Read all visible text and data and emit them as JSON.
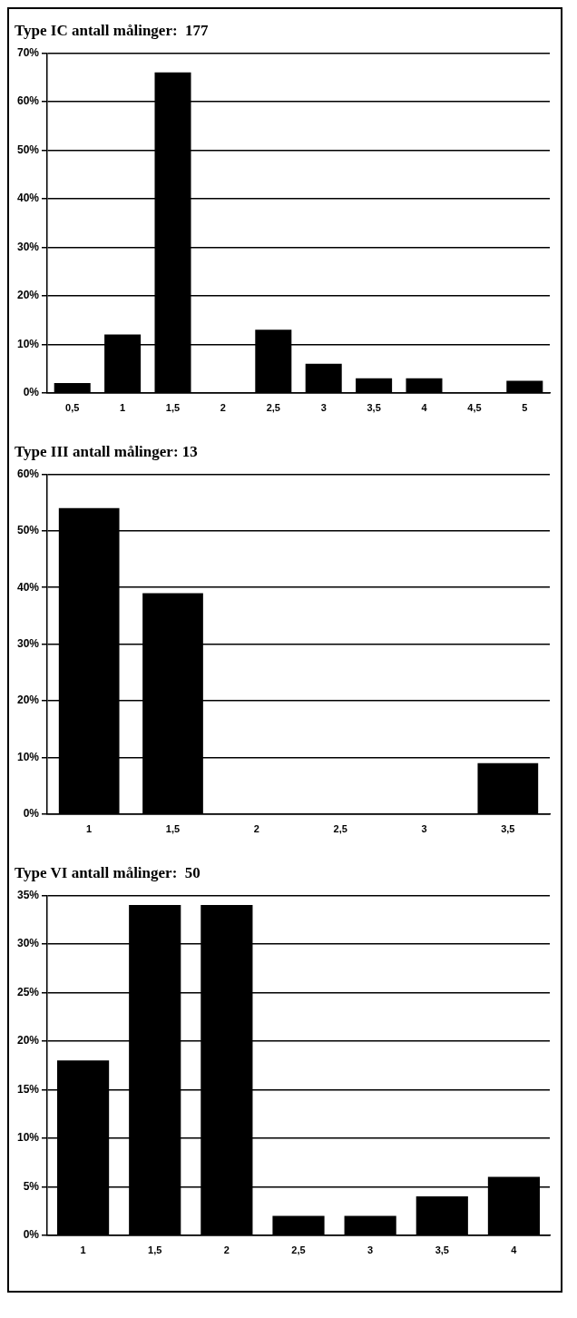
{
  "chart_data": [
    {
      "type": "bar",
      "title": "Type IC antall målinger:  177",
      "categories": [
        "0,5",
        "1",
        "1,5",
        "2",
        "2,5",
        "3",
        "3,5",
        "4",
        "4,5",
        "5"
      ],
      "values": [
        2,
        12,
        66,
        0,
        13,
        6,
        3,
        3,
        0,
        2.5
      ],
      "color": "#000000",
      "ylim": [
        0,
        70
      ],
      "yticks": [
        {
          "value": 0,
          "label": "0%"
        },
        {
          "value": 10,
          "label": "10%"
        },
        {
          "value": 20,
          "label": "20%"
        },
        {
          "value": 30,
          "label": "30%"
        },
        {
          "value": 40,
          "label": "40%"
        },
        {
          "value": 50,
          "label": "50%"
        },
        {
          "value": 60,
          "label": "60%"
        },
        {
          "value": 70,
          "label": "70%"
        }
      ],
      "grid": "y",
      "legend": false
    },
    {
      "type": "bar",
      "title": "Type III antall målinger: 13",
      "categories": [
        "1",
        "1,5",
        "2",
        "2,5",
        "3",
        "3,5"
      ],
      "values": [
        54,
        39,
        0,
        0,
        0,
        9
      ],
      "color": "#000000",
      "ylim": [
        0,
        60
      ],
      "yticks": [
        {
          "value": 0,
          "label": "0%"
        },
        {
          "value": 10,
          "label": "10%"
        },
        {
          "value": 20,
          "label": "20%"
        },
        {
          "value": 30,
          "label": "30%"
        },
        {
          "value": 40,
          "label": "40%"
        },
        {
          "value": 50,
          "label": "50%"
        },
        {
          "value": 60,
          "label": "60%"
        }
      ],
      "grid": "y",
      "legend": false
    },
    {
      "type": "bar",
      "title": "Type VI antall målinger:  50",
      "categories": [
        "1",
        "1,5",
        "2",
        "2,5",
        "3",
        "3,5",
        "4"
      ],
      "values": [
        18,
        34,
        34,
        2,
        2,
        4,
        6
      ],
      "color": "#000000",
      "ylim": [
        0,
        35
      ],
      "yticks": [
        {
          "value": 0,
          "label": "0%"
        },
        {
          "value": 5,
          "label": "5%"
        },
        {
          "value": 10,
          "label": "10%"
        },
        {
          "value": 15,
          "label": "15%"
        },
        {
          "value": 20,
          "label": "20%"
        },
        {
          "value": 25,
          "label": "25%"
        },
        {
          "value": 30,
          "label": "30%"
        },
        {
          "value": 35,
          "label": "35%"
        }
      ],
      "grid": "y",
      "legend": false
    }
  ]
}
